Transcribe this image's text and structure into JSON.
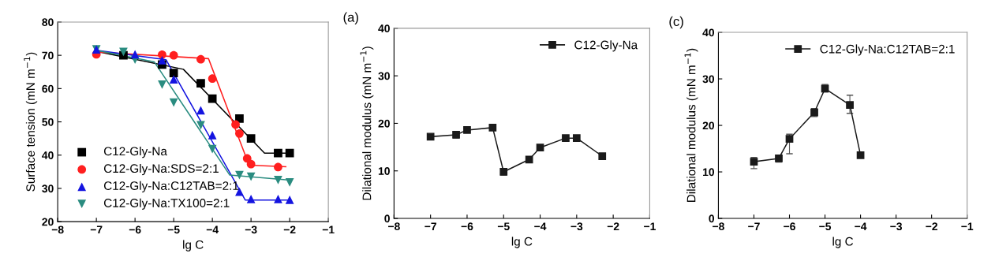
{
  "chart_data": [
    {
      "type": "scatter",
      "xlabel": "lg C",
      "ylabel": "Surface tension (mN m$^{−1}$)",
      "xlim": [
        -8,
        -1
      ],
      "xticks": [
        -8,
        -7,
        -6,
        -5,
        -4,
        -3,
        -2,
        -1
      ],
      "ylim": [
        20,
        80
      ],
      "yticks": [
        20,
        30,
        40,
        50,
        60,
        70,
        80
      ],
      "grid": false,
      "legend": "bottom left",
      "series": [
        {
          "name": "C12-Gly-Na",
          "type": "scatter",
          "marker": "square",
          "color": "#000000",
          "x": [
            -6.3,
            -5.3,
            -5,
            -4.3,
            -4,
            -3.3,
            -3,
            -2.3,
            -2
          ],
          "values": [
            70,
            67.2,
            64.7,
            61.6,
            57,
            51,
            45,
            40.6,
            40.6
          ]
        },
        {
          "name": "C12-Gly-Na:SDS=2:1",
          "type": "scatter",
          "marker": "circle",
          "color": "#ff1f1f",
          "x": [
            -7,
            -5.3,
            -5,
            -4.3,
            -4,
            -3.4,
            -3.3,
            -3.1,
            -3,
            -2.3
          ],
          "values": [
            70.3,
            70.2,
            70,
            68.8,
            63,
            49.2,
            46.5,
            39,
            37.3,
            36.4
          ]
        },
        {
          "name": "C12-Gly-Na:C12TAB=2:1",
          "type": "scatter",
          "marker": "triangle",
          "color": "#1414e0",
          "x": [
            -7,
            -6,
            -5.3,
            -5,
            -4.3,
            -4,
            -3.3,
            -3,
            -2.3,
            -2
          ],
          "values": [
            71.8,
            70.3,
            68.5,
            62.8,
            53.5,
            46,
            29,
            26.8,
            26.8,
            26.6
          ]
        },
        {
          "name": "C12-Gly-Na:TX100=2:1",
          "type": "scatter",
          "marker": "triangle_down",
          "color": "#2a8c80",
          "x": [
            -7,
            -6.3,
            -6,
            -5.3,
            -5,
            -4.3,
            -4,
            -3.3,
            -3,
            -2.3,
            -2
          ],
          "values": [
            71.8,
            71,
            68.7,
            61.2,
            55.8,
            49,
            41.8,
            34,
            33.5,
            32.5,
            31.8
          ]
        },
        {
          "type": "line",
          "color": "#000000",
          "x": [
            -7,
            -4.75,
            -2.65,
            -2
          ],
          "values": [
            71.2,
            65.8,
            40.6,
            40.6
          ]
        },
        {
          "type": "line",
          "color": "#ff1f1f",
          "x": [
            -7,
            -4.1,
            -3.05,
            -2.1
          ],
          "values": [
            71,
            69,
            37,
            36.5
          ]
        },
        {
          "type": "line",
          "color": "#1414e0",
          "x": [
            -7,
            -5.2,
            -3.15,
            -2
          ],
          "values": [
            71.5,
            68.7,
            26.5,
            26.5
          ]
        },
        {
          "type": "line",
          "color": "#2a8c80",
          "x": [
            -7,
            -5.5,
            -3.55,
            -2
          ],
          "values": [
            71.5,
            68,
            34,
            32.5
          ]
        }
      ]
    },
    {
      "type": "line",
      "title": "(a)",
      "xlabel": "lg C",
      "ylabel": "Dilational modulus (mN m$^{−1}$)",
      "xlim": [
        -8,
        -1
      ],
      "xticks": [
        -8,
        -7,
        -6,
        -5,
        -4,
        -3,
        -2,
        -1
      ],
      "ylim": [
        0,
        40
      ],
      "yticks": [
        0,
        10,
        20,
        30,
        40
      ],
      "grid": false,
      "legend": "top right",
      "marker": "square",
      "series": [
        {
          "name": "C12-Gly-Na",
          "color": "#1a1a1a",
          "x": [
            -7,
            -6.3,
            -6,
            -5.3,
            -5,
            -4.3,
            -4,
            -3.3,
            -3,
            -2.3
          ],
          "values": [
            17.2,
            17.6,
            18.6,
            19.1,
            9.8,
            12.4,
            14.9,
            16.9,
            16.9,
            13.1
          ],
          "errors": [
            0.3,
            0.7,
            0.4,
            0.3,
            0.7,
            0.4,
            0.5,
            0.3,
            0.3,
            0.4
          ]
        }
      ]
    },
    {
      "type": "line",
      "title": "(c)",
      "xlabel": "lg C",
      "ylabel": "Dilational modulus (mN m$^{−1}$)",
      "xlim": [
        -8,
        -1
      ],
      "xticks": [
        -8,
        -7,
        -6,
        -5,
        -4,
        -3,
        -2,
        -1
      ],
      "ylim": [
        0,
        40
      ],
      "yticks": [
        0,
        10,
        20,
        30,
        40
      ],
      "grid": false,
      "legend": "top right",
      "marker": "square",
      "series": [
        {
          "name": "C12-Gly-Na:C12TAB=2:1",
          "color": "#1a1a1a",
          "x": [
            -7,
            -6.3,
            -6,
            -5.3,
            -5,
            -4.3,
            -4
          ],
          "values": [
            12.2,
            12.9,
            17.1,
            22.8,
            27.9,
            24.4,
            13.6
          ],
          "errors": [
            [
              10.7,
              13.1
            ],
            [
              12.1,
              13.6
            ],
            [
              13.9,
              18.1
            ],
            [
              21.9,
              23.6
            ],
            [
              27.2,
              28.8
            ],
            [
              22.6,
              26.5
            ],
            [
              13.2,
              14.1
            ]
          ]
        }
      ]
    }
  ]
}
